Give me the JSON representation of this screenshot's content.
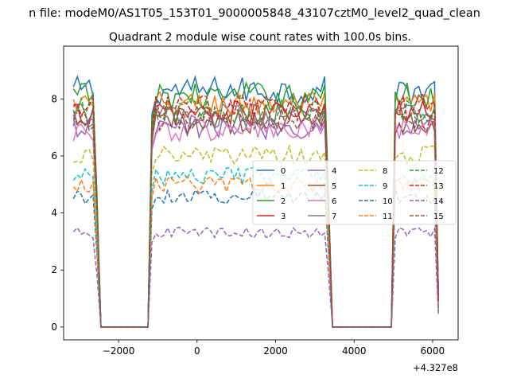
{
  "chart_data": {
    "type": "line",
    "suptitle": "n file: modeM0/AS1T05_153T01_9000005848_43107cztM0_level2_quad_clean",
    "title": "Quadrant 2 module wise count rates with 100.0s bins.",
    "xlabel": "",
    "ylabel": "",
    "x_offset_label": "+4.327e8",
    "xlim": [
      -3400,
      6650
    ],
    "ylim": [
      -0.45,
      9.85
    ],
    "xticks": [
      -2000,
      0,
      2000,
      4000,
      6000
    ],
    "xtick_labels": [
      "−2000",
      "0",
      "2000",
      "4000",
      "6000"
    ],
    "yticks": [
      0,
      2,
      4,
      6,
      8
    ],
    "ytick_labels": [
      "0",
      "2",
      "4",
      "6",
      "8"
    ],
    "grid": false,
    "legend_placement": "center-right",
    "legend_columns": 4,
    "segments": [
      {
        "start": -3150,
        "step": 100,
        "points": 7
      },
      {
        "start": -1150,
        "step": 100,
        "points": 46
      },
      {
        "start": 5050,
        "step": 100,
        "points": 12
      }
    ],
    "series": [
      {
        "name": "0",
        "color": "#1f77b4",
        "dash": "solid",
        "level": 8.3
      },
      {
        "name": "1",
        "color": "#ff7f0e",
        "dash": "solid",
        "level": 7.8
      },
      {
        "name": "2",
        "color": "#2ca02c",
        "dash": "solid",
        "level": 8.1
      },
      {
        "name": "3",
        "color": "#d62728",
        "dash": "solid",
        "level": 7.5
      },
      {
        "name": "4",
        "color": "#9467bd",
        "dash": "solid",
        "level": 7.0
      },
      {
        "name": "5",
        "color": "#8c564b",
        "dash": "solid",
        "level": 7.2
      },
      {
        "name": "6",
        "color": "#e377c2",
        "dash": "solid",
        "level": 6.9
      },
      {
        "name": "7",
        "color": "#7f7f7f",
        "dash": "solid",
        "level": 7.4
      },
      {
        "name": "8",
        "color": "#bcbd22",
        "dash": "dashed",
        "level": 6.0
      },
      {
        "name": "9",
        "color": "#17becf",
        "dash": "dashed",
        "level": 5.3
      },
      {
        "name": "10",
        "color": "#1f77b4",
        "dash": "dashed",
        "level": 4.6
      },
      {
        "name": "11",
        "color": "#ff7f0e",
        "dash": "dashed",
        "level": 5.0
      },
      {
        "name": "12",
        "color": "#2ca02c",
        "dash": "dashed",
        "level": 7.6
      },
      {
        "name": "13",
        "color": "#d62728",
        "dash": "dashed",
        "level": 7.7
      },
      {
        "name": "14",
        "color": "#9467bd",
        "dash": "dashed",
        "level": 3.3
      },
      {
        "name": "15",
        "color": "#8c564b",
        "dash": "dashed",
        "level": 7.3
      }
    ]
  }
}
